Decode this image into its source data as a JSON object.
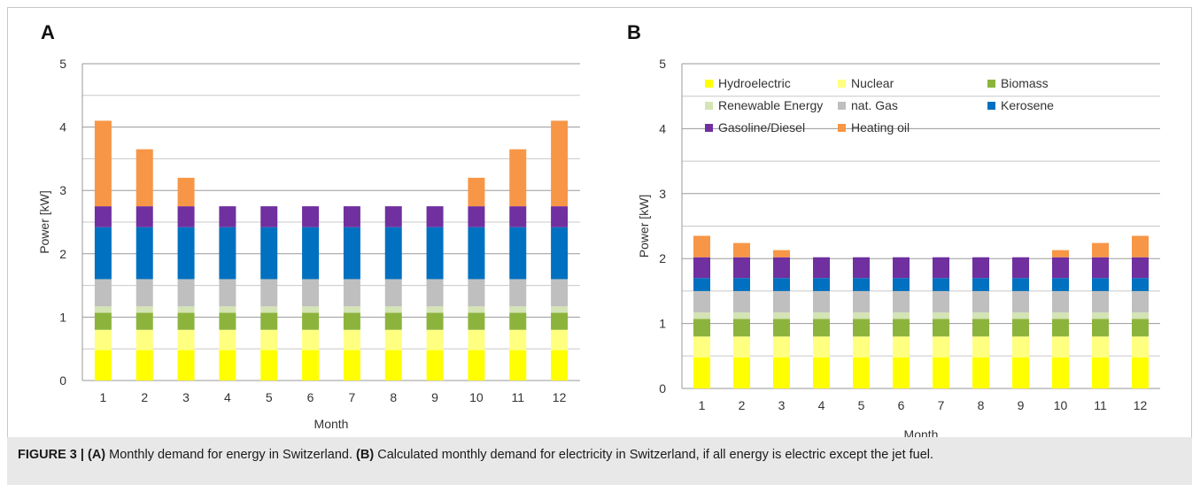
{
  "caption": {
    "figure_label": "FIGURE 3 | ",
    "a_ref": "(A)",
    "a_text": " Monthly demand for energy in Switzerland. ",
    "b_ref": "(B)",
    "b_text": " Calculated monthly demand for electricity in Switzerland, if all energy is electric except the jet fuel."
  },
  "panels": {
    "a_label": "A",
    "b_label": "B"
  },
  "colors": {
    "Hydroelectric": "#ffff00",
    "Nuclear": "#ffff80",
    "Biomass": "#8cb43c",
    "Renewable Energy": "#d4e4b4",
    "nat. Gas": "#bfbfbf",
    "Kerosene": "#0070c0",
    "Gasoline/Diesel": "#7030a0",
    "Heating oil": "#f79646"
  },
  "chart_data": [
    {
      "type": "bar",
      "stacked": true,
      "panel": "A",
      "xlabel": "Month",
      "ylabel": "Power [kW]",
      "ylim": [
        0,
        5
      ],
      "yticks": [
        0,
        1,
        2,
        3,
        4,
        5
      ],
      "grid": true,
      "legend": "none",
      "categories": [
        "1",
        "2",
        "3",
        "4",
        "5",
        "6",
        "7",
        "8",
        "9",
        "10",
        "11",
        "12"
      ],
      "series": [
        {
          "name": "Hydroelectric",
          "values": [
            0.48,
            0.48,
            0.48,
            0.48,
            0.48,
            0.48,
            0.48,
            0.48,
            0.48,
            0.48,
            0.48,
            0.48
          ]
        },
        {
          "name": "Nuclear",
          "values": [
            0.32,
            0.32,
            0.32,
            0.32,
            0.32,
            0.32,
            0.32,
            0.32,
            0.32,
            0.32,
            0.32,
            0.32
          ]
        },
        {
          "name": "Biomass",
          "values": [
            0.27,
            0.27,
            0.27,
            0.27,
            0.27,
            0.27,
            0.27,
            0.27,
            0.27,
            0.27,
            0.27,
            0.27
          ]
        },
        {
          "name": "Renewable Energy",
          "values": [
            0.1,
            0.1,
            0.1,
            0.1,
            0.1,
            0.1,
            0.1,
            0.1,
            0.1,
            0.1,
            0.1,
            0.1
          ]
        },
        {
          "name": "nat. Gas",
          "values": [
            0.43,
            0.43,
            0.43,
            0.43,
            0.43,
            0.43,
            0.43,
            0.43,
            0.43,
            0.43,
            0.43,
            0.43
          ]
        },
        {
          "name": "Kerosene",
          "values": [
            0.82,
            0.82,
            0.82,
            0.82,
            0.82,
            0.82,
            0.82,
            0.82,
            0.82,
            0.82,
            0.82,
            0.82
          ]
        },
        {
          "name": "Gasoline/Diesel",
          "values": [
            0.33,
            0.33,
            0.33,
            0.33,
            0.33,
            0.33,
            0.33,
            0.33,
            0.33,
            0.33,
            0.33,
            0.33
          ]
        },
        {
          "name": "Heating oil",
          "values": [
            1.35,
            0.9,
            0.45,
            0,
            0,
            0,
            0,
            0,
            0,
            0.45,
            0.9,
            1.35
          ]
        }
      ]
    },
    {
      "type": "bar",
      "stacked": true,
      "panel": "B",
      "xlabel": "Month",
      "ylabel": "Power [kW]",
      "ylim": [
        0,
        5
      ],
      "yticks": [
        0,
        1,
        2,
        3,
        4,
        5
      ],
      "grid": true,
      "legend": "top-left",
      "categories": [
        "1",
        "2",
        "3",
        "4",
        "5",
        "6",
        "7",
        "8",
        "9",
        "10",
        "11",
        "12"
      ],
      "series": [
        {
          "name": "Hydroelectric",
          "values": [
            0.48,
            0.48,
            0.48,
            0.48,
            0.48,
            0.48,
            0.48,
            0.48,
            0.48,
            0.48,
            0.48,
            0.48
          ]
        },
        {
          "name": "Nuclear",
          "values": [
            0.32,
            0.32,
            0.32,
            0.32,
            0.32,
            0.32,
            0.32,
            0.32,
            0.32,
            0.32,
            0.32,
            0.32
          ]
        },
        {
          "name": "Biomass",
          "values": [
            0.27,
            0.27,
            0.27,
            0.27,
            0.27,
            0.27,
            0.27,
            0.27,
            0.27,
            0.27,
            0.27,
            0.27
          ]
        },
        {
          "name": "Renewable Energy",
          "values": [
            0.1,
            0.1,
            0.1,
            0.1,
            0.1,
            0.1,
            0.1,
            0.1,
            0.1,
            0.1,
            0.1,
            0.1
          ]
        },
        {
          "name": "nat. Gas",
          "values": [
            0.33,
            0.33,
            0.33,
            0.33,
            0.33,
            0.33,
            0.33,
            0.33,
            0.33,
            0.33,
            0.33,
            0.33
          ]
        },
        {
          "name": "Kerosene",
          "values": [
            0.2,
            0.2,
            0.2,
            0.2,
            0.2,
            0.2,
            0.2,
            0.2,
            0.2,
            0.2,
            0.2,
            0.2
          ]
        },
        {
          "name": "Gasoline/Diesel",
          "values": [
            0.32,
            0.32,
            0.32,
            0.32,
            0.32,
            0.32,
            0.32,
            0.32,
            0.32,
            0.32,
            0.32,
            0.32
          ]
        },
        {
          "name": "Heating oil",
          "values": [
            0.33,
            0.22,
            0.11,
            0,
            0,
            0,
            0,
            0,
            0,
            0.11,
            0.22,
            0.33
          ]
        }
      ]
    }
  ]
}
